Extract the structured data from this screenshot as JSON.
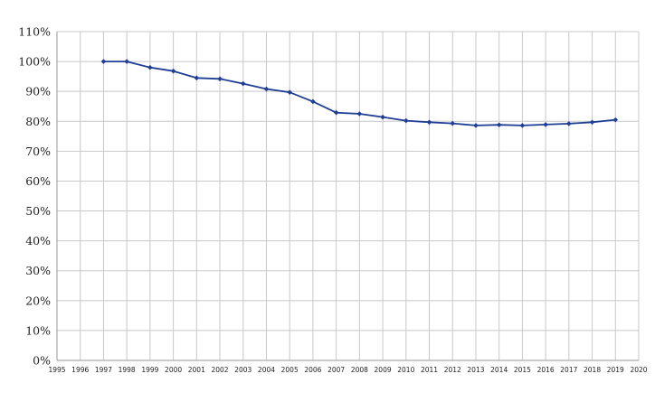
{
  "chart_data": {
    "type": "line",
    "title": "",
    "xlabel": "",
    "ylabel": "",
    "x_ticks": [
      "1995",
      "1996",
      "1997",
      "1998",
      "1999",
      "2000",
      "2001",
      "2002",
      "2003",
      "2004",
      "2005",
      "2006",
      "2007",
      "2008",
      "2009",
      "2010",
      "2011",
      "2012",
      "2013",
      "2014",
      "2015",
      "2016",
      "2017",
      "2018",
      "2019",
      "2020"
    ],
    "y_ticks": [
      "0%",
      "10%",
      "20%",
      "30%",
      "40%",
      "50%",
      "60%",
      "70%",
      "80%",
      "90%",
      "100%",
      "110%"
    ],
    "xlim": [
      1995,
      2020
    ],
    "ylim": [
      0,
      110
    ],
    "grid": true,
    "legend": "none",
    "series": [
      {
        "color": "#1f3f96",
        "x": [
          1997,
          1998,
          1999,
          2000,
          2001,
          2002,
          2003,
          2004,
          2005,
          2006,
          2007,
          2008,
          2009,
          2010,
          2011,
          2012,
          2013,
          2014,
          2015,
          2016,
          2017,
          2018,
          2019
        ],
        "values": [
          100,
          100,
          98,
          96.8,
          94.5,
          94.2,
          92.6,
          90.8,
          89.7,
          86.6,
          82.9,
          82.5,
          81.4,
          80.2,
          79.7,
          79.3,
          78.6,
          78.8,
          78.6,
          78.9,
          79.2,
          79.7,
          80.5
        ]
      }
    ]
  }
}
